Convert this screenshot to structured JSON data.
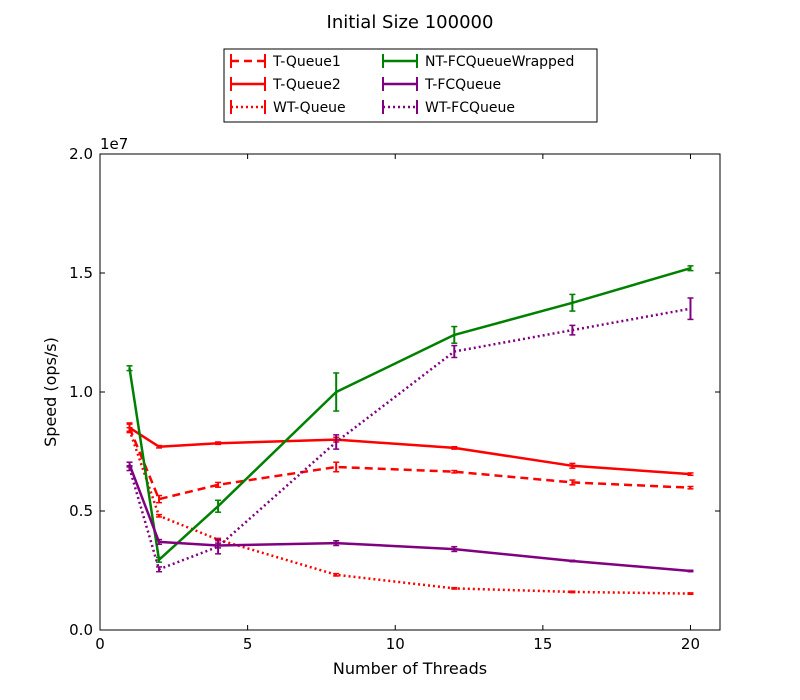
{
  "chart_data": {
    "type": "line",
    "title": "Initial Size 100000",
    "xlabel": "Number of Threads",
    "ylabel": "Speed (ops/s)",
    "y_multiplier_label": "1e7",
    "xlim": [
      0,
      21
    ],
    "ylim": [
      0,
      2.0
    ],
    "x_ticks": [
      0,
      5,
      10,
      15,
      20
    ],
    "x_tick_labels": [
      "0",
      "5",
      "10",
      "15",
      "20"
    ],
    "y_ticks": [
      0,
      0.5,
      1.0,
      1.5,
      2.0
    ],
    "y_tick_labels": [
      "0.0",
      "0.5",
      "1.0",
      "1.5",
      "2.0"
    ],
    "grid": false,
    "legend_position": "top-center",
    "x": [
      1,
      2,
      4,
      8,
      12,
      16,
      20
    ],
    "series": [
      {
        "name": "T-Queue1",
        "color": "#ff0000",
        "style": "dashed",
        "values": [
          0.85,
          0.55,
          0.61,
          0.685,
          0.665,
          0.62,
          0.598
        ],
        "errors": [
          0.02,
          0.015,
          0.01,
          0.02,
          0.005,
          0.01,
          0.005
        ]
      },
      {
        "name": "T-Queue2",
        "color": "#ff0000",
        "style": "solid",
        "values": [
          0.85,
          0.77,
          0.785,
          0.8,
          0.765,
          0.69,
          0.655
        ],
        "errors": [
          0.015,
          0.005,
          0.005,
          0.01,
          0.005,
          0.01,
          0.005
        ]
      },
      {
        "name": "WT-Queue",
        "color": "#ff0000",
        "style": "dotted",
        "values": [
          0.84,
          0.48,
          0.38,
          0.232,
          0.175,
          0.16,
          0.153
        ],
        "errors": [
          0.01,
          0.005,
          0.005,
          0.005,
          0.003,
          0.003,
          0.003
        ]
      },
      {
        "name": "NT-FCQueueWrapped",
        "color": "#008000",
        "style": "solid",
        "values": [
          1.1,
          0.295,
          0.52,
          1.0,
          1.24,
          1.375,
          1.52
        ],
        "errors": [
          0.01,
          0.01,
          0.025,
          0.08,
          0.035,
          0.035,
          0.01
        ]
      },
      {
        "name": "T-FCQueue",
        "color": "#800080",
        "style": "solid",
        "values": [
          0.695,
          0.37,
          0.355,
          0.365,
          0.34,
          0.29,
          0.248
        ],
        "errors": [
          0.01,
          0.01,
          0.01,
          0.01,
          0.01,
          0.003,
          0.003
        ]
      },
      {
        "name": "WT-FCQueue",
        "color": "#800080",
        "style": "dotted",
        "values": [
          0.68,
          0.255,
          0.35,
          0.79,
          1.17,
          1.26,
          1.35
        ],
        "errors": [
          0.01,
          0.01,
          0.03,
          0.03,
          0.025,
          0.02,
          0.045
        ]
      }
    ]
  }
}
